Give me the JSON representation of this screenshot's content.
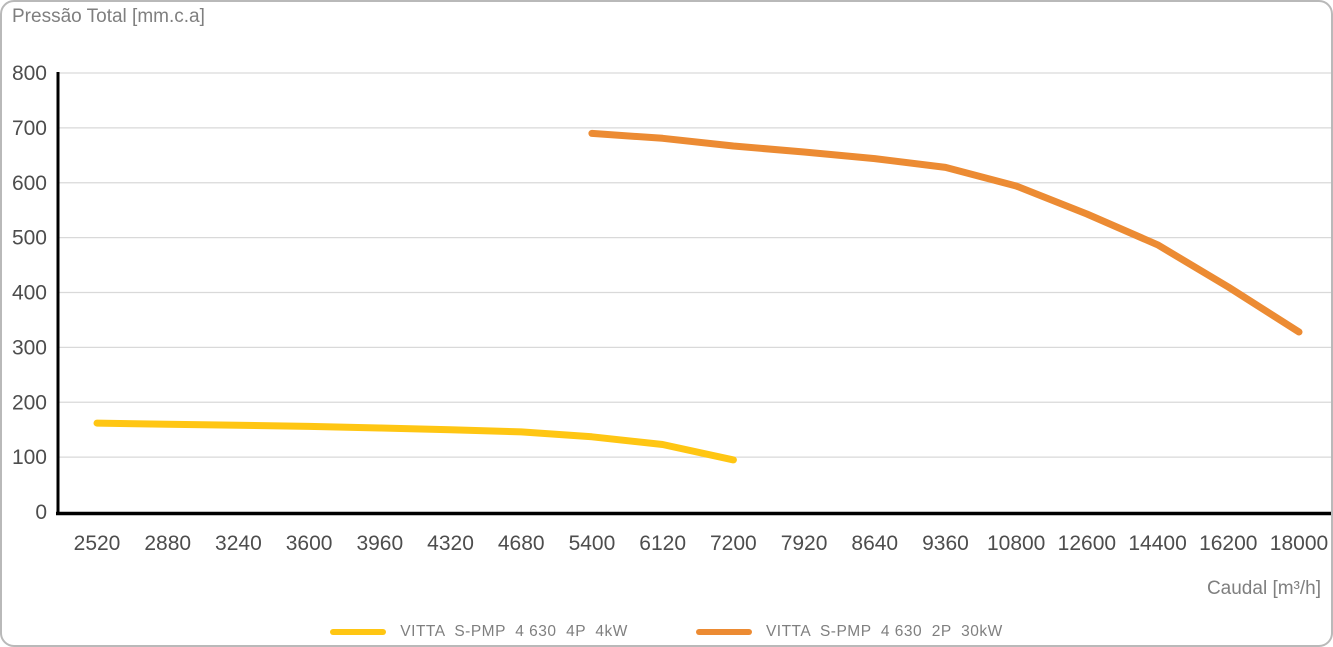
{
  "chart_data": {
    "type": "line",
    "title": "",
    "ylabel": "Pressão Total [mm.c.a]",
    "xlabel": "Caudal [m³/h]",
    "ylim": [
      0,
      800
    ],
    "y_ticks": [
      0,
      100,
      200,
      300,
      400,
      500,
      600,
      700,
      800
    ],
    "categories": [
      2520,
      2880,
      3240,
      3600,
      3960,
      4320,
      4680,
      5400,
      6120,
      7200,
      7920,
      8640,
      9360,
      10800,
      12600,
      14400,
      16200,
      18000
    ],
    "grid": "horizontal",
    "legend_position": "bottom",
    "series": [
      {
        "name": "VITTA  S-PMP  4 630  4P  4kW",
        "color": "#FFC613",
        "values": [
          162,
          160,
          158,
          156,
          153,
          150,
          146,
          137,
          123,
          95,
          null,
          null,
          null,
          null,
          null,
          null,
          null,
          null
        ]
      },
      {
        "name": "VITTA  S-PMP  4 630  2P  30kW",
        "color": "#EC8B33",
        "values": [
          null,
          null,
          null,
          null,
          null,
          null,
          null,
          690,
          681,
          667,
          656,
          644,
          628,
          594,
          543,
          487,
          410,
          328
        ]
      }
    ]
  },
  "colors": {
    "gridline": "#D9D9D9",
    "axis": "#000000",
    "tick_label": "#4D4D4D",
    "axis_title": "#7F7F7F"
  }
}
